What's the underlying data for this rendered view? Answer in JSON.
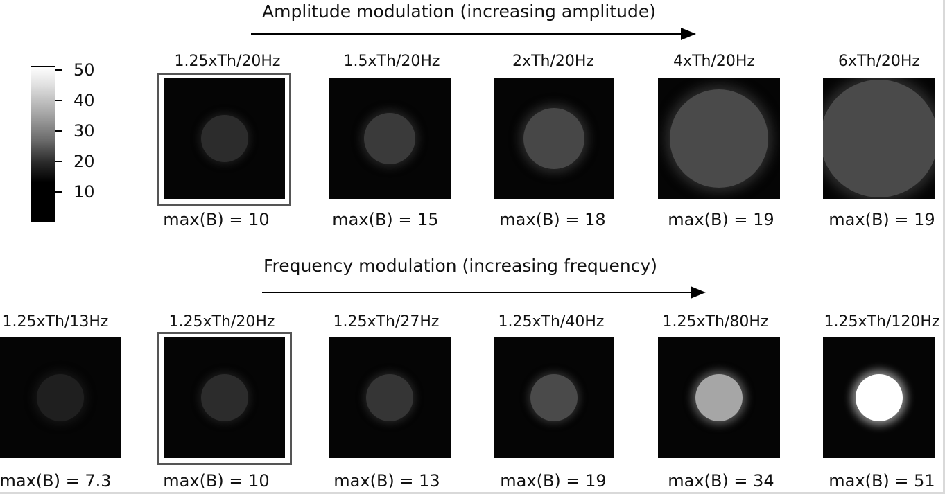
{
  "colorbar": {
    "ticks": [
      "50",
      "40",
      "30",
      "20",
      "10"
    ]
  },
  "amplitude": {
    "heading": "Amplitude modulation (increasing amplitude)",
    "panels": [
      {
        "label": "1.25xTh/20Hz",
        "max": "max(B) = 10"
      },
      {
        "label": "1.5xTh/20Hz",
        "max": "max(B) = 15"
      },
      {
        "label": "2xTh/20Hz",
        "max": "max(B) = 18"
      },
      {
        "label": "4xTh/20Hz",
        "max": "max(B) = 19"
      },
      {
        "label": "6xTh/20Hz",
        "max": "max(B) = 19"
      }
    ]
  },
  "frequency": {
    "heading": "Frequency modulation (increasing frequency)",
    "panels": [
      {
        "label": "1.25xTh/13Hz",
        "max": "max(B) = 7.3"
      },
      {
        "label": "1.25xTh/20Hz",
        "max": "max(B) = 10"
      },
      {
        "label": "1.25xTh/27Hz",
        "max": "max(B) = 13"
      },
      {
        "label": "1.25xTh/40Hz",
        "max": "max(B) = 19"
      },
      {
        "label": "1.25xTh/80Hz",
        "max": "max(B) = 34"
      },
      {
        "label": "1.25xTh/120Hz",
        "max": "max(B) = 51"
      }
    ]
  }
}
